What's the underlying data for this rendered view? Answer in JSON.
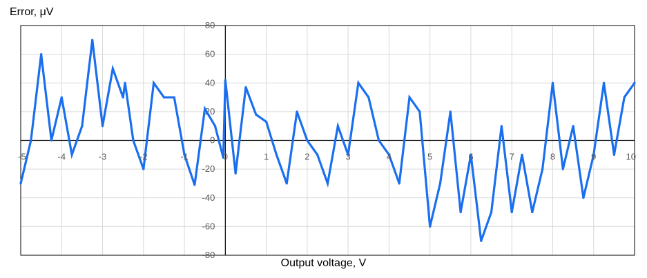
{
  "chart_data": {
    "type": "line",
    "title": "",
    "xlabel": "Output voltage, V",
    "ylabel": "Error, μV",
    "xlim": [
      -5,
      10
    ],
    "ylim": [
      -80,
      80
    ],
    "xticks": [
      -5,
      -4,
      -3,
      -2,
      -1,
      0,
      1,
      2,
      3,
      4,
      5,
      6,
      7,
      8,
      9,
      10
    ],
    "yticks": [
      -80,
      -60,
      -40,
      -20,
      0,
      20,
      40,
      60,
      80
    ],
    "xtick_labels": [
      "-5",
      "-4",
      "-3",
      "-2",
      "-1",
      "0",
      "1",
      "2",
      "3",
      "4",
      "5",
      "6",
      "7",
      "8",
      "9",
      "10"
    ],
    "ytick_labels": [
      "-80",
      "-60",
      "-40",
      "-20",
      "0",
      "20",
      "40",
      "60",
      "80"
    ],
    "grid": true,
    "legend": "none",
    "series": [
      {
        "color": "#1a6fef",
        "x": [
          -5,
          -4.75,
          -4.5,
          -4.25,
          -4,
          -3.75,
          -3.5,
          -3.25,
          -3,
          -2.75,
          -2.5,
          -2.45,
          -2.25,
          -2,
          -1.75,
          -1.5,
          -1.25,
          -1,
          -0.75,
          -0.5,
          -0.25,
          -0.05,
          0,
          0.25,
          0.5,
          0.75,
          1,
          1.25,
          1.5,
          1.75,
          2,
          2.25,
          2.5,
          2.75,
          3,
          3.25,
          3.5,
          3.75,
          4,
          4.25,
          4.5,
          4.75,
          5,
          5.25,
          5.5,
          5.75,
          6,
          6.25,
          6.5,
          6.75,
          7,
          7.25,
          7.5,
          7.75,
          8,
          8.25,
          8.5,
          8.75,
          9,
          9.25,
          9.5,
          9.75,
          10
        ],
        "y": [
          -30,
          0,
          60,
          0,
          30,
          -10,
          10,
          70,
          10,
          50,
          30,
          40,
          0,
          -20,
          40,
          30,
          30,
          -10,
          -31,
          22,
          10,
          -12,
          42,
          -23,
          37,
          18,
          13,
          -10,
          -30,
          20,
          0,
          -10,
          -30,
          10,
          -10,
          40,
          30,
          0,
          -10,
          -30,
          30,
          20,
          -60,
          -30,
          20,
          -50,
          -10,
          -70,
          -50,
          10,
          -50,
          -10,
          -50,
          -20,
          40,
          -20,
          10,
          -40,
          -10,
          40,
          -10,
          30,
          40
        ]
      }
    ]
  }
}
